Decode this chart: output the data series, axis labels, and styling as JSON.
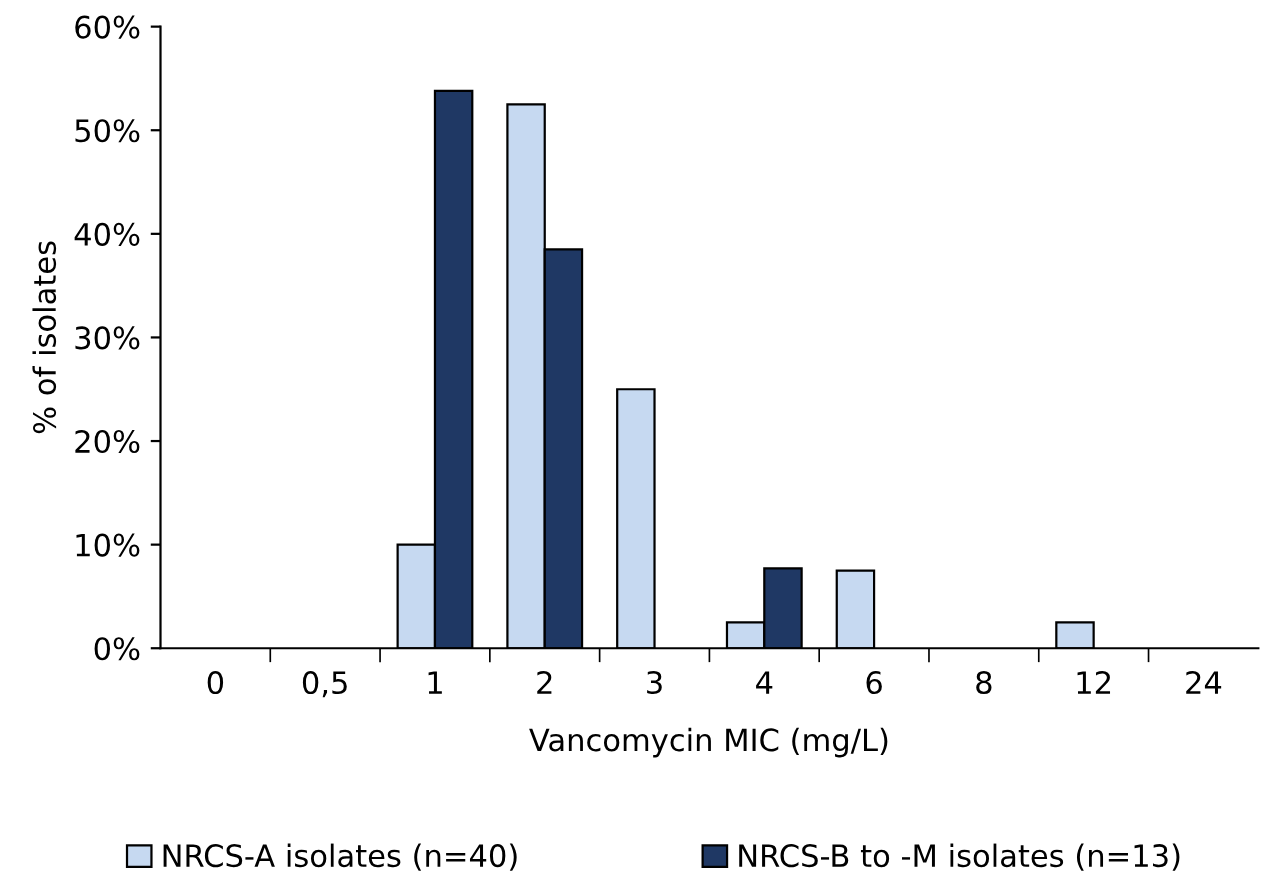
{
  "chart_data": {
    "type": "bar",
    "xlabel": "Vancomycin MIC (mg/L)",
    "ylabel": "% of isolates",
    "categories": [
      "0",
      "0,5",
      "1",
      "2",
      "3",
      "4",
      "6",
      "8",
      "12",
      "24"
    ],
    "series": [
      {
        "name": "NRCS-A isolates (n=40)",
        "color": "#c6d9f1",
        "values": [
          null,
          null,
          10,
          52.5,
          25,
          2.5,
          7.5,
          null,
          2.5,
          null
        ]
      },
      {
        "name": "NRCS-B to -M isolates (n=13)",
        "color": "#1f3864",
        "values": [
          null,
          null,
          53.8,
          38.5,
          null,
          7.7,
          null,
          null,
          null,
          null
        ]
      }
    ],
    "ylim": [
      0,
      60
    ],
    "yticks": [
      {
        "value": 0,
        "label": "0%"
      },
      {
        "value": 10,
        "label": "10%"
      },
      {
        "value": 20,
        "label": "20%"
      },
      {
        "value": 30,
        "label": "30%"
      },
      {
        "value": 40,
        "label": "40%"
      },
      {
        "value": 50,
        "label": "50%"
      },
      {
        "value": 60,
        "label": "60%"
      }
    ],
    "grid": false,
    "legend": "bottom"
  }
}
